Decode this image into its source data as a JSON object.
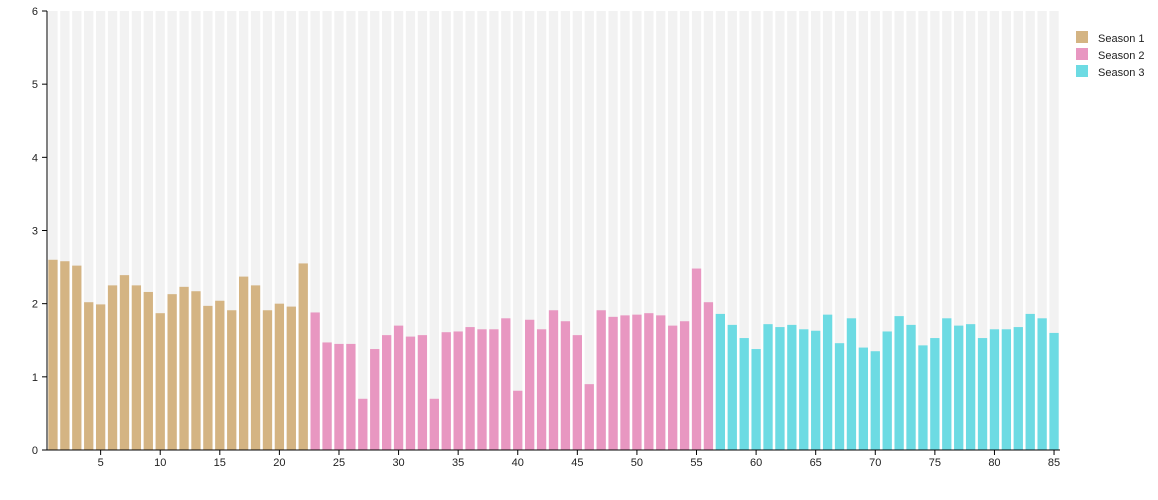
{
  "chart_data": {
    "type": "bar",
    "title": "",
    "xlabel": "",
    "ylabel": "",
    "ylim": [
      0,
      6
    ],
    "yticks": [
      0,
      1,
      2,
      3,
      4,
      5,
      6
    ],
    "xticks": [
      5,
      10,
      15,
      20,
      25,
      30,
      35,
      40,
      45,
      50,
      55,
      60,
      65,
      70,
      75,
      80,
      85
    ],
    "xrange": [
      1,
      85
    ],
    "background_bar_value": 6,
    "grid": false,
    "legend_position": "top-right",
    "series": [
      {
        "name": "Season 1",
        "color": "#d4b483",
        "x": [
          1,
          2,
          3,
          4,
          5,
          6,
          7,
          8,
          9,
          10,
          11,
          12,
          13,
          14,
          15,
          16,
          17,
          18,
          19,
          20,
          21,
          22
        ],
        "values": [
          2.6,
          2.58,
          2.52,
          2.02,
          1.99,
          2.25,
          2.39,
          2.25,
          2.16,
          1.87,
          2.13,
          2.23,
          2.17,
          1.97,
          2.04,
          1.91,
          2.37,
          2.25,
          1.91,
          2.0,
          1.96,
          2.55
        ]
      },
      {
        "name": "Season 2",
        "color": "#e897c1",
        "x": [
          23,
          24,
          25,
          26,
          27,
          28,
          29,
          30,
          31,
          32,
          33,
          34,
          35,
          36,
          37,
          38,
          39,
          40,
          41,
          42,
          43,
          44,
          45,
          46,
          47,
          48,
          49,
          50,
          51,
          52,
          53,
          54,
          55,
          56
        ],
        "values": [
          1.88,
          1.47,
          1.45,
          1.45,
          0.7,
          1.38,
          1.57,
          1.7,
          1.55,
          1.57,
          0.7,
          1.61,
          1.62,
          1.68,
          1.65,
          1.65,
          1.8,
          0.81,
          1.78,
          1.65,
          1.91,
          1.76,
          1.57,
          0.9,
          1.91,
          1.82,
          1.84,
          1.85,
          1.87,
          1.84,
          1.7,
          1.76,
          2.48,
          2.02
        ]
      },
      {
        "name": "Season 3",
        "color": "#6ddbe3",
        "x": [
          57,
          58,
          59,
          60,
          61,
          62,
          63,
          64,
          65,
          66,
          67,
          68,
          69,
          70,
          71,
          72,
          73,
          74,
          75,
          76,
          77,
          78,
          79,
          80,
          81,
          82,
          83,
          84,
          85
        ],
        "values": [
          1.86,
          1.71,
          1.53,
          1.38,
          1.72,
          1.68,
          1.71,
          1.65,
          1.63,
          1.85,
          1.46,
          1.8,
          1.4,
          1.35,
          1.62,
          1.83,
          1.71,
          1.43,
          1.53,
          1.8,
          1.7,
          1.72,
          1.53,
          1.65,
          1.65,
          1.68,
          1.86,
          1.8,
          1.6
        ]
      }
    ]
  }
}
